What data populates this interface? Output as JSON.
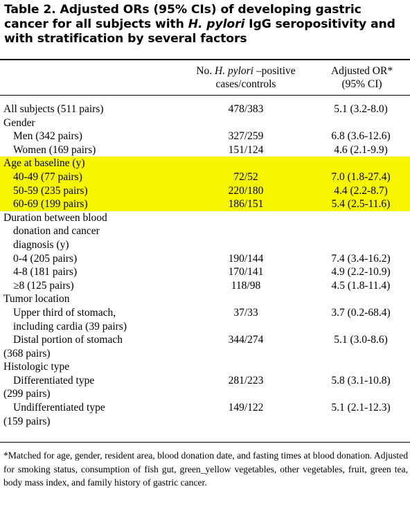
{
  "title": {
    "part1": "Table 2. Adjusted ORs (95% CIs) of developing gastric cancer for all subjects with ",
    "italic": "H. pylori",
    "part2": " IgG seropositivity and with stratification by several factors"
  },
  "header": {
    "col2_line1_pre": "No. ",
    "col2_line1_italic": "H. pylori",
    "col2_line1_post": " –positive",
    "col2_line2": "cases/controls",
    "col3_line1": "Adjusted OR*",
    "col3_line2": "(95% CI)"
  },
  "rows": [
    {
      "label": "All subjects (511 pairs)",
      "cases": "478/383",
      "or": "5.1 (3.2-8.0)"
    },
    {
      "label": "Gender",
      "cases": "",
      "or": ""
    },
    {
      "label": "Men (342 pairs)",
      "cases": "327/259",
      "or": "6.8 (3.6-12.6)"
    },
    {
      "label": "Women (169 pairs)",
      "cases": "151/124",
      "or": "4.6 (2.1-9.9)"
    },
    {
      "label": "Age at baseline (y)",
      "cases": "",
      "or": ""
    },
    {
      "label": "40-49 (77 pairs)",
      "cases": "72/52",
      "or": "7.0 (1.8-27.4)"
    },
    {
      "label": "50-59 (235 pairs)",
      "cases": "220/180",
      "or": "4.4 (2.2-8.7)"
    },
    {
      "label": "60-69 (199 pairs)",
      "cases": "186/151",
      "or": "5.4 (2.5-11.6)"
    },
    {
      "label_lines": [
        "Duration between blood",
        "donation and cancer",
        "diagnosis (y)"
      ],
      "cases": "",
      "or": ""
    },
    {
      "label": "0-4 (205 pairs)",
      "cases": "190/144",
      "or": "7.4 (3.4-16.2)"
    },
    {
      "label": "4-8 (181 pairs)",
      "cases": "170/141",
      "or": "4.9 (2.2-10.9)"
    },
    {
      "label": "≥8 (125 pairs)",
      "cases": "118/98",
      "or": "4.5 (1.8-11.4)"
    },
    {
      "label": "Tumor location",
      "cases": "",
      "or": ""
    },
    {
      "label_lines": [
        "Upper third of stomach,",
        "including cardia (39 pairs)"
      ],
      "cases": "37/33",
      "or": "3.7 (0.2-68.4)"
    },
    {
      "label_lines": [
        "Distal portion of stomach",
        "(368 pairs)"
      ],
      "cases": "344/274",
      "or": "5.1 (3.0-8.6)"
    },
    {
      "label": "Histologic type",
      "cases": "",
      "or": ""
    },
    {
      "label_lines": [
        "Differentiated type",
        "(299 pairs)"
      ],
      "cases": "281/223",
      "or": "5.8 (3.1-10.8)"
    },
    {
      "label_lines": [
        "Undifferentiated type",
        "(159 pairs)"
      ],
      "cases": "149/122",
      "or": "5.1 (2.1-12.3)"
    }
  ],
  "footnote": "*Matched for age, gender, resident area, blood donation date, and fasting times at blood donation. Adjusted for smoking status, consumption of fish gut, green_yellow vegetables, other vegetables, fruit, green tea, body mass index, and family history of gastric cancer.",
  "colors": {
    "highlight": "#f7f500"
  }
}
